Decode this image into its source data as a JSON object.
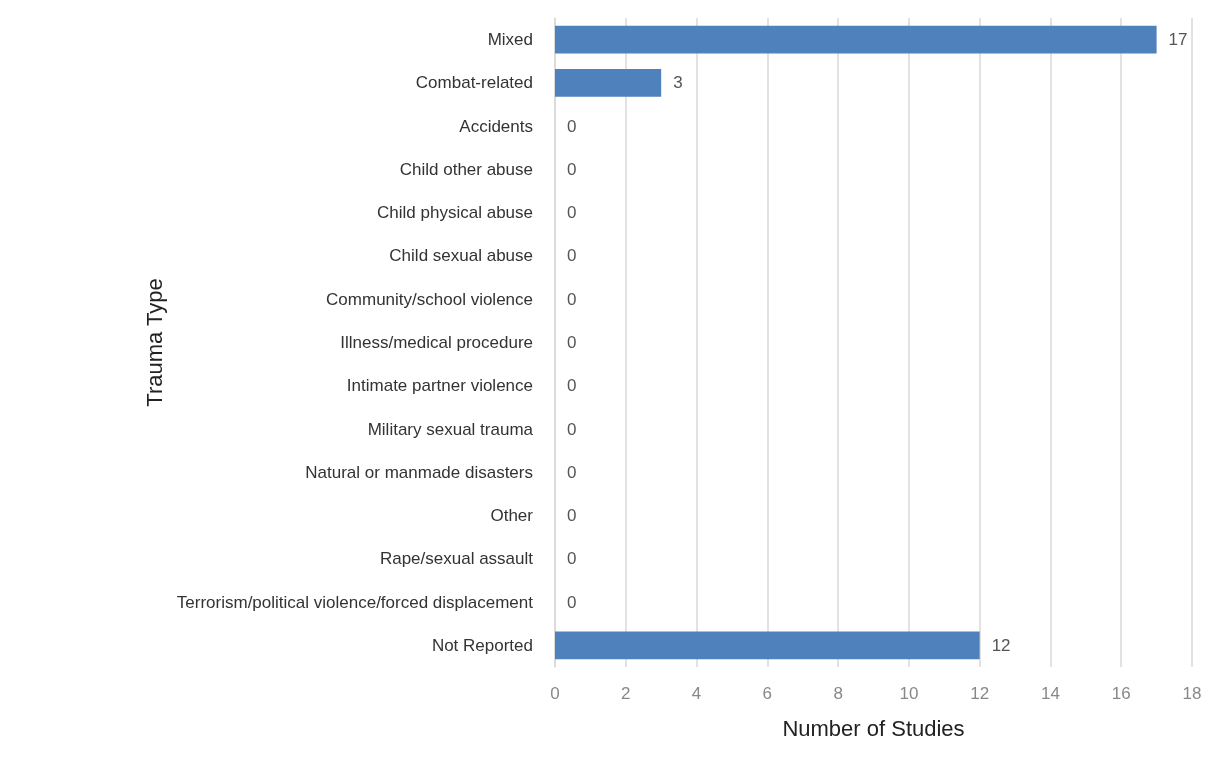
{
  "chart_data": {
    "type": "bar",
    "orientation": "horizontal",
    "xlabel": "Number of Studies",
    "ylabel": "Trauma Type",
    "categories": [
      "Mixed",
      "Combat-related",
      "Accidents",
      "Child other abuse",
      "Child physical abuse",
      "Child sexual abuse",
      "Community/school violence",
      "Illness/medical procedure",
      "Intimate partner violence",
      "Military sexual trauma",
      "Natural or manmade disasters",
      "Other",
      "Rape/sexual assault",
      "Terrorism/political violence/forced displacement",
      "Not Reported"
    ],
    "values": [
      17,
      3,
      0,
      0,
      0,
      0,
      0,
      0,
      0,
      0,
      0,
      0,
      0,
      0,
      12
    ],
    "color": "#4f81bd",
    "xlim": [
      0,
      18
    ],
    "xticks": [
      0,
      2,
      4,
      6,
      8,
      10,
      12,
      14,
      16,
      18
    ],
    "grid": "x",
    "data_labels": true
  }
}
